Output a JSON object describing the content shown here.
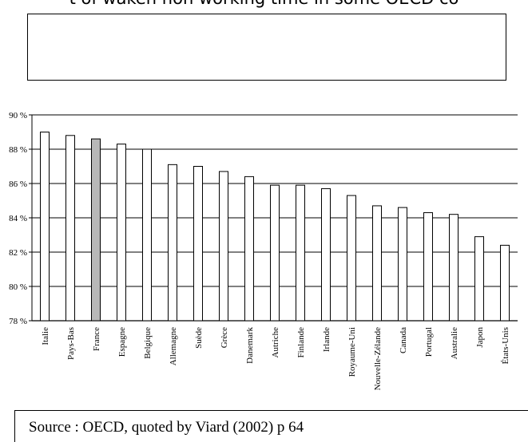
{
  "header": {
    "title_fragment": "t of waken non working time in some OECD co"
  },
  "source": {
    "text": "Source : OECD, quoted by Viard  (2002) p 64"
  },
  "chart_data": {
    "type": "bar",
    "title": "",
    "xlabel": "",
    "ylabel": "",
    "ylim": [
      78,
      90
    ],
    "yticks": [
      78,
      80,
      82,
      84,
      86,
      88,
      90
    ],
    "ytick_labels": [
      "78 %",
      "80 %",
      "82 %",
      "84 %",
      "86 %",
      "88 %",
      "90 %"
    ],
    "grid": true,
    "categories": [
      "Italie",
      "Pays-Bas",
      "France",
      "Espagne",
      "Belgique",
      "Allemagne",
      "Suède",
      "Grèce",
      "Danemark",
      "Autriche",
      "Finlande",
      "Irlande",
      "Royaume-Uni",
      "Nouvelle-Zélande",
      "Canada",
      "Portugal",
      "Australie",
      "Japon",
      "États-Unis"
    ],
    "values": [
      89.0,
      88.8,
      88.6,
      88.3,
      88.0,
      87.1,
      87.0,
      86.7,
      86.4,
      85.9,
      85.9,
      85.7,
      85.3,
      84.7,
      84.6,
      84.3,
      84.2,
      82.9,
      82.4
    ],
    "highlight_category": "France",
    "colors": {
      "bar": "#ffffff",
      "highlight": "#b8b8b8",
      "stroke": "#000000"
    }
  }
}
